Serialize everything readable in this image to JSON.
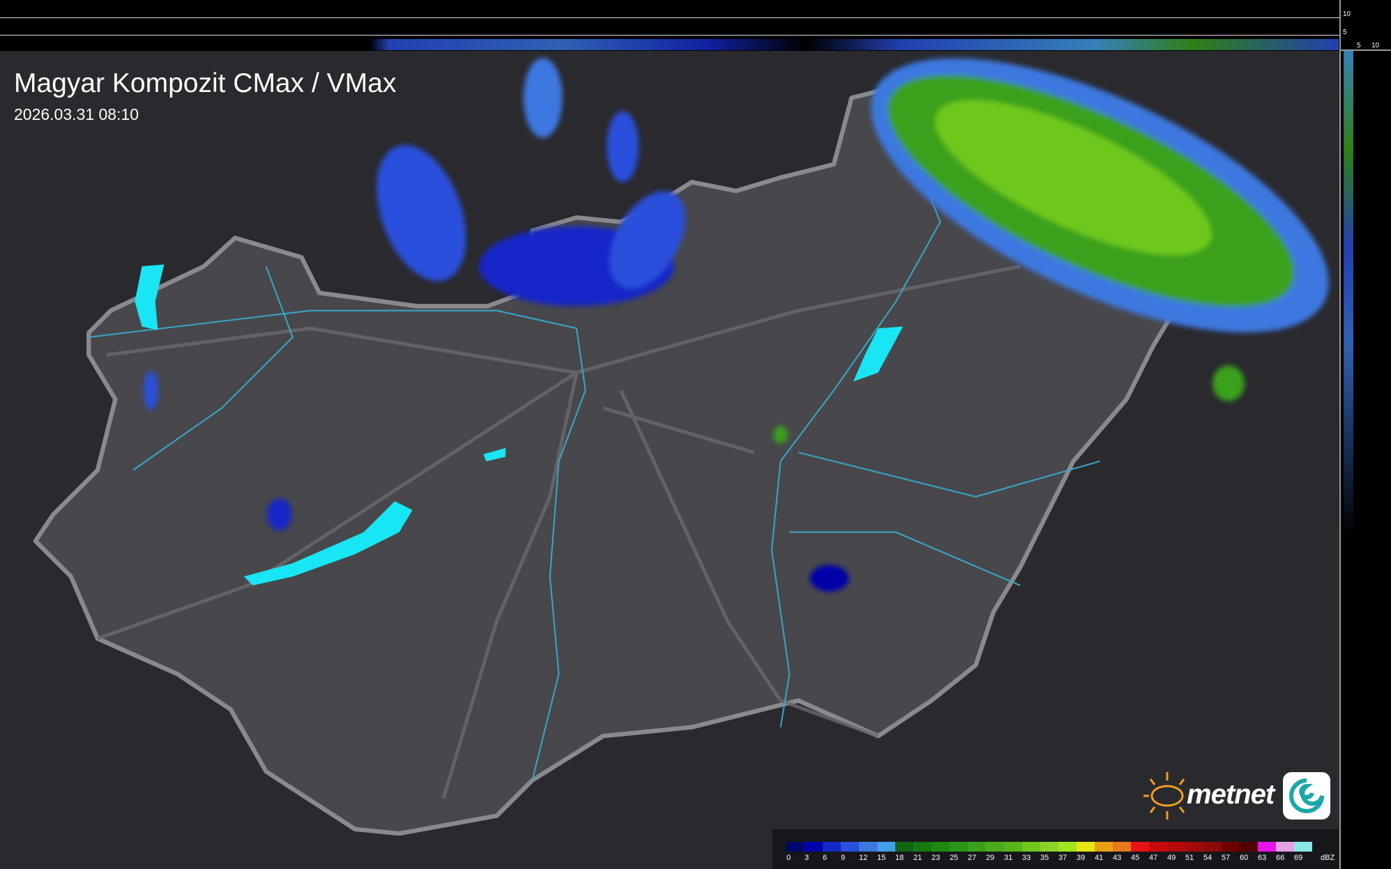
{
  "header": {
    "title": "Magyar Kompozit CMax / VMax",
    "timestamp": "2026.03.31 08:10"
  },
  "side_axis": {
    "vertical_ticks": [
      "10",
      "5"
    ],
    "horizontal_ticks": [
      "5",
      "10"
    ]
  },
  "legend": {
    "unit": "dBZ",
    "items": [
      {
        "label": "0",
        "color": "#00086e"
      },
      {
        "label": "3",
        "color": "#0000aa"
      },
      {
        "label": "6",
        "color": "#1428c8"
      },
      {
        "label": "9",
        "color": "#2a50dc"
      },
      {
        "label": "12",
        "color": "#3c78e0"
      },
      {
        "label": "15",
        "color": "#44a0e6"
      },
      {
        "label": "18",
        "color": "#106414"
      },
      {
        "label": "21",
        "color": "#187812"
      },
      {
        "label": "23",
        "color": "#1e8a14"
      },
      {
        "label": "25",
        "color": "#289618"
      },
      {
        "label": "27",
        "color": "#3aa01c"
      },
      {
        "label": "29",
        "color": "#4caa1c"
      },
      {
        "label": "31",
        "color": "#5ab41c"
      },
      {
        "label": "33",
        "color": "#6ec81e"
      },
      {
        "label": "35",
        "color": "#8cd228"
      },
      {
        "label": "37",
        "color": "#a0e61e"
      },
      {
        "label": "39",
        "color": "#e6e614"
      },
      {
        "label": "41",
        "color": "#e6a014"
      },
      {
        "label": "43",
        "color": "#e6781e"
      },
      {
        "label": "45",
        "color": "#e61414"
      },
      {
        "label": "47",
        "color": "#c80a0a"
      },
      {
        "label": "49",
        "color": "#b40a0a"
      },
      {
        "label": "51",
        "color": "#a00a0a"
      },
      {
        "label": "54",
        "color": "#8c0a0a"
      },
      {
        "label": "57",
        "color": "#6e0000"
      },
      {
        "label": "60",
        "color": "#500000"
      },
      {
        "label": "63",
        "color": "#e614e6"
      },
      {
        "label": "66",
        "color": "#e6a0e6"
      },
      {
        "label": "69",
        "color": "#8ce6e6"
      }
    ]
  },
  "logo": {
    "text": "metnet",
    "sun_color": "#f0a020"
  },
  "colors": {
    "background": "#2a2a2e",
    "country": "#48484c",
    "border": "#8a8a8e",
    "rivers": "#3aa6c8",
    "lakes": "#19e6f5"
  }
}
